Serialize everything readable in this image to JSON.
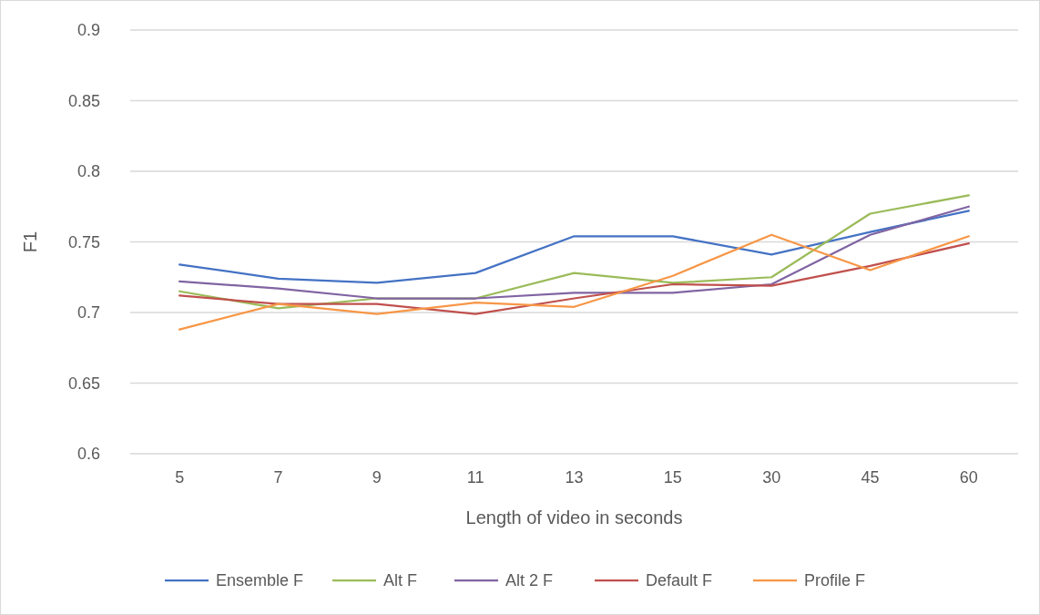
{
  "chart_data": {
    "type": "line",
    "xlabel": "Length of video in seconds",
    "ylabel": "F1",
    "categories": [
      "5",
      "7",
      "9",
      "11",
      "13",
      "15",
      "30",
      "45",
      "60"
    ],
    "ylim": [
      0.6,
      0.9
    ],
    "yticks": [
      0.6,
      0.65,
      0.7,
      0.75,
      0.8,
      0.85,
      0.9
    ],
    "grid": "y",
    "legend": "bottom",
    "marker": "none",
    "series": [
      {
        "name": "Ensemble F",
        "color": "#4472c4",
        "values": [
          0.734,
          0.724,
          0.721,
          0.728,
          0.754,
          0.754,
          0.741,
          0.757,
          0.772
        ]
      },
      {
        "name": "Alt F",
        "color": "#9bbb59",
        "values": [
          0.715,
          0.703,
          0.71,
          0.71,
          0.728,
          0.721,
          0.725,
          0.77,
          0.783
        ]
      },
      {
        "name": "Alt 2 F",
        "color": "#8064a2",
        "values": [
          0.722,
          0.717,
          0.71,
          0.71,
          0.714,
          0.714,
          0.72,
          0.755,
          0.775
        ]
      },
      {
        "name": "Default F",
        "color": "#c0504d",
        "values": [
          0.712,
          0.706,
          0.706,
          0.699,
          0.71,
          0.72,
          0.719,
          0.733,
          0.749
        ]
      },
      {
        "name": "Profile F",
        "color": "#f79646",
        "values": [
          0.688,
          0.706,
          0.699,
          0.707,
          0.704,
          0.726,
          0.755,
          0.73,
          0.754
        ]
      }
    ]
  }
}
